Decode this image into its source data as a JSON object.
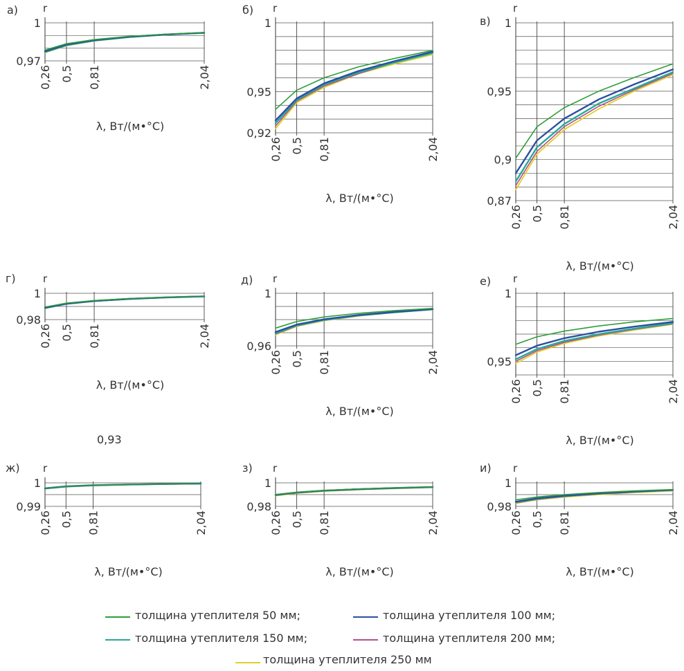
{
  "stray_value": "0,93",
  "xlabel": "λ, Вт/(м•°С)",
  "ylabel": "r",
  "x_ticks": [
    "0,26",
    "0,5",
    "0,81",
    "2,04"
  ],
  "legend": [
    {
      "label": "толщина утеплителя 50 мм;",
      "color": "#2e9e3a"
    },
    {
      "label": "толщина утеплителя 100 мм;",
      "color": "#2b4fa0"
    },
    {
      "label": "толщина утеплителя 150 мм;",
      "color": "#28a89a"
    },
    {
      "label": "толщина утеплителя 200 мм;",
      "color": "#b0508a"
    },
    {
      "label": "толщина утеплителя 250 мм",
      "color": "#e3cf2a"
    }
  ],
  "chart_data": [
    {
      "id": "a",
      "panel_label": "а)",
      "type": "line",
      "ylim": [
        0.97,
        1
      ],
      "y_ticks": [
        {
          "v": 1,
          "t": "1"
        },
        {
          "v": 0.97,
          "t": "0,97"
        }
      ],
      "x": [
        0.26,
        0.5,
        0.81,
        1.2,
        1.6,
        2.04
      ],
      "series": [
        {
          "name": "50",
          "values": [
            0.9785,
            0.9835,
            0.9868,
            0.9893,
            0.991,
            0.9923
          ]
        },
        {
          "name": "100",
          "values": [
            0.9775,
            0.9828,
            0.9863,
            0.989,
            0.9908,
            0.9922
          ]
        },
        {
          "name": "150",
          "values": [
            0.977,
            0.9824,
            0.986,
            0.9888,
            0.9907,
            0.9921
          ]
        },
        {
          "name": "200",
          "values": [
            0.9768,
            0.9822,
            0.9858,
            0.9887,
            0.9906,
            0.992
          ]
        },
        {
          "name": "250",
          "values": [
            0.9765,
            0.982,
            0.9857,
            0.9886,
            0.9905,
            0.992
          ]
        }
      ]
    },
    {
      "id": "b",
      "panel_label": "б)",
      "type": "line",
      "ylim": [
        0.92,
        1
      ],
      "y_ticks": [
        {
          "v": 1,
          "t": "1"
        },
        {
          "v": 0.95,
          "t": "0,95"
        },
        {
          "v": 0.92,
          "t": "0,92"
        }
      ],
      "x": [
        0.26,
        0.5,
        0.81,
        1.2,
        1.6,
        2.04
      ],
      "series": [
        {
          "name": "50",
          "values": [
            0.937,
            0.951,
            0.96,
            0.968,
            0.974,
            0.98
          ]
        },
        {
          "name": "100",
          "values": [
            0.929,
            0.945,
            0.956,
            0.965,
            0.972,
            0.979
          ]
        },
        {
          "name": "150",
          "values": [
            0.927,
            0.944,
            0.955,
            0.964,
            0.971,
            0.978
          ]
        },
        {
          "name": "200",
          "values": [
            0.925,
            0.943,
            0.954,
            0.963,
            0.971,
            0.978
          ]
        },
        {
          "name": "250",
          "values": [
            0.923,
            0.942,
            0.953,
            0.963,
            0.97,
            0.977
          ]
        }
      ]
    },
    {
      "id": "c",
      "panel_label": "в)",
      "type": "line",
      "ylim": [
        0.87,
        1
      ],
      "y_ticks": [
        {
          "v": 1,
          "t": "1"
        },
        {
          "v": 0.95,
          "t": "0,95"
        },
        {
          "v": 0.9,
          "t": "0,9"
        },
        {
          "v": 0.87,
          "t": "0,87"
        }
      ],
      "x": [
        0.26,
        0.5,
        0.81,
        1.2,
        1.6,
        2.04
      ],
      "series": [
        {
          "name": "50",
          "values": [
            0.901,
            0.924,
            0.938,
            0.95,
            0.96,
            0.97
          ]
        },
        {
          "name": "100",
          "values": [
            0.89,
            0.914,
            0.93,
            0.944,
            0.955,
            0.966
          ]
        },
        {
          "name": "150",
          "values": [
            0.884,
            0.909,
            0.926,
            0.941,
            0.952,
            0.964
          ]
        },
        {
          "name": "200",
          "values": [
            0.881,
            0.906,
            0.924,
            0.939,
            0.951,
            0.963
          ]
        },
        {
          "name": "250",
          "values": [
            0.878,
            0.904,
            0.922,
            0.937,
            0.95,
            0.962
          ]
        }
      ]
    },
    {
      "id": "d",
      "panel_label": "г)",
      "type": "line",
      "ylim": [
        0.98,
        1
      ],
      "y_ticks": [
        {
          "v": 1,
          "t": "1"
        },
        {
          "v": 0.98,
          "t": "0,98"
        }
      ],
      "x": [
        0.26,
        0.5,
        0.81,
        1.2,
        1.6,
        2.04
      ],
      "series": [
        {
          "name": "50",
          "values": [
            0.9895,
            0.9925,
            0.9945,
            0.996,
            0.997,
            0.9978
          ]
        },
        {
          "name": "100",
          "values": [
            0.989,
            0.9921,
            0.9942,
            0.9958,
            0.9969,
            0.9977
          ]
        },
        {
          "name": "150",
          "values": [
            0.9888,
            0.992,
            0.9941,
            0.9957,
            0.9968,
            0.9977
          ]
        },
        {
          "name": "200",
          "values": [
            0.9887,
            0.9919,
            0.994,
            0.9957,
            0.9968,
            0.9977
          ]
        },
        {
          "name": "250",
          "values": [
            0.9886,
            0.9918,
            0.994,
            0.9956,
            0.9968,
            0.9977
          ]
        }
      ]
    },
    {
      "id": "e",
      "panel_label": "д)",
      "type": "line",
      "ylim": [
        0.96,
        1
      ],
      "y_ticks": [
        {
          "v": 1,
          "t": "1"
        },
        {
          "v": 0.96,
          "t": "0,96"
        }
      ],
      "x": [
        0.26,
        0.5,
        0.81,
        1.2,
        1.6,
        2.04
      ],
      "series": [
        {
          "name": "50",
          "values": [
            0.9735,
            0.9785,
            0.982,
            0.9848,
            0.9868,
            0.9885
          ]
        },
        {
          "name": "100",
          "values": [
            0.9705,
            0.9762,
            0.9802,
            0.9835,
            0.9858,
            0.988
          ]
        },
        {
          "name": "150",
          "values": [
            0.9695,
            0.9755,
            0.9797,
            0.9831,
            0.9855,
            0.9878
          ]
        },
        {
          "name": "200",
          "values": [
            0.969,
            0.9752,
            0.9795,
            0.9829,
            0.9854,
            0.9877
          ]
        },
        {
          "name": "250",
          "values": [
            0.9685,
            0.9748,
            0.9792,
            0.9827,
            0.9853,
            0.9876
          ]
        }
      ]
    },
    {
      "id": "f",
      "panel_label": "е)",
      "type": "line",
      "ylim": [
        0.94,
        1
      ],
      "y_ticks": [
        {
          "v": 1,
          "t": "1"
        },
        {
          "v": 0.95,
          "t": "0,95"
        }
      ],
      "x": [
        0.26,
        0.5,
        0.81,
        1.2,
        1.6,
        2.04
      ],
      "series": [
        {
          "name": "50",
          "values": [
            0.9625,
            0.968,
            0.9722,
            0.976,
            0.979,
            0.9815
          ]
        },
        {
          "name": "100",
          "values": [
            0.9545,
            0.9615,
            0.967,
            0.9718,
            0.9755,
            0.979
          ]
        },
        {
          "name": "150",
          "values": [
            0.9515,
            0.959,
            0.965,
            0.97,
            0.974,
            0.978
          ]
        },
        {
          "name": "200",
          "values": [
            0.95,
            0.9578,
            0.964,
            0.9693,
            0.9735,
            0.9776
          ]
        },
        {
          "name": "250",
          "values": [
            0.9485,
            0.9568,
            0.9632,
            0.9687,
            0.973,
            0.9772
          ]
        }
      ]
    },
    {
      "id": "g",
      "panel_label": "ж)",
      "type": "line",
      "ylim": [
        0.99,
        1
      ],
      "y_ticks": [
        {
          "v": 1,
          "t": "1"
        },
        {
          "v": 0.99,
          "t": "0,99"
        }
      ],
      "x": [
        0.26,
        0.5,
        0.81,
        1.2,
        1.6,
        2.04
      ],
      "series": [
        {
          "name": "50",
          "values": [
            0.9978,
            0.9985,
            0.999,
            0.9993,
            0.9995,
            0.9997
          ]
        },
        {
          "name": "100",
          "values": [
            0.9977,
            0.9985,
            0.999,
            0.9993,
            0.9995,
            0.9997
          ]
        },
        {
          "name": "150",
          "values": [
            0.9976,
            0.9984,
            0.9989,
            0.9993,
            0.9995,
            0.9997
          ]
        },
        {
          "name": "200",
          "values": [
            0.9976,
            0.9984,
            0.9989,
            0.9993,
            0.9995,
            0.9997
          ]
        },
        {
          "name": "250",
          "values": [
            0.9975,
            0.9984,
            0.9989,
            0.9992,
            0.9995,
            0.9997
          ]
        }
      ]
    },
    {
      "id": "h",
      "panel_label": "з)",
      "type": "line",
      "ylim": [
        0.98,
        1
      ],
      "y_ticks": [
        {
          "v": 1,
          "t": "1"
        },
        {
          "v": 0.98,
          "t": "0,98"
        }
      ],
      "x": [
        0.26,
        0.5,
        0.81,
        1.2,
        1.6,
        2.04
      ],
      "series": [
        {
          "name": "50",
          "values": [
            0.99,
            0.992,
            0.9936,
            0.9948,
            0.9957,
            0.9965
          ]
        },
        {
          "name": "100",
          "values": [
            0.9898,
            0.9918,
            0.9934,
            0.9946,
            0.9956,
            0.9964
          ]
        },
        {
          "name": "150",
          "values": [
            0.9896,
            0.9917,
            0.9933,
            0.9946,
            0.9955,
            0.9964
          ]
        },
        {
          "name": "200",
          "values": [
            0.9894,
            0.9915,
            0.9932,
            0.9945,
            0.9955,
            0.9963
          ]
        },
        {
          "name": "250",
          "values": [
            0.989,
            0.9912,
            0.9929,
            0.9942,
            0.9952,
            0.9961
          ]
        }
      ]
    },
    {
      "id": "i",
      "panel_label": "и)",
      "type": "line",
      "ylim": [
        0.98,
        1
      ],
      "y_ticks": [
        {
          "v": 1,
          "t": "1"
        },
        {
          "v": 0.98,
          "t": "0,98"
        }
      ],
      "x": [
        0.26,
        0.5,
        0.81,
        1.2,
        1.6,
        2.04
      ],
      "series": [
        {
          "name": "50",
          "values": [
            0.9855,
            0.988,
            0.99,
            0.9918,
            0.9932,
            0.9943
          ]
        },
        {
          "name": "100",
          "values": [
            0.984,
            0.9868,
            0.989,
            0.991,
            0.9926,
            0.994
          ]
        },
        {
          "name": "150",
          "values": [
            0.9835,
            0.9864,
            0.9887,
            0.9908,
            0.9924,
            0.9939
          ]
        },
        {
          "name": "200",
          "values": [
            0.983,
            0.986,
            0.9884,
            0.9905,
            0.9922,
            0.9937
          ]
        },
        {
          "name": "250",
          "values": [
            0.9825,
            0.9855,
            0.9879,
            0.99,
            0.9917,
            0.9932
          ]
        }
      ]
    }
  ]
}
